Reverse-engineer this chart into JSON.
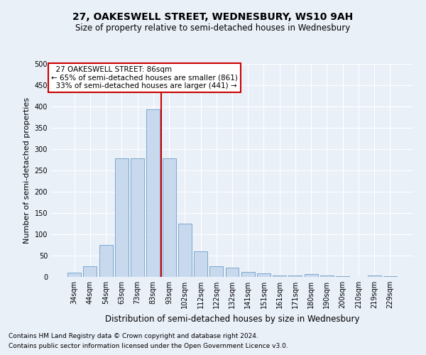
{
  "title": "27, OAKESWELL STREET, WEDNESBURY, WS10 9AH",
  "subtitle": "Size of property relative to semi-detached houses in Wednesbury",
  "xlabel": "Distribution of semi-detached houses by size in Wednesbury",
  "ylabel": "Number of semi-detached properties",
  "footnote1": "Contains HM Land Registry data © Crown copyright and database right 2024.",
  "footnote2": "Contains public sector information licensed under the Open Government Licence v3.0.",
  "property_label": "27 OAKESWELL STREET: 86sqm",
  "pct_smaller": 65,
  "count_smaller": 861,
  "pct_larger": 33,
  "count_larger": 441,
  "bar_color": "#c9d9ed",
  "bar_edge_color": "#6a9ec7",
  "vline_color": "#cc0000",
  "annotation_box_color": "#cc0000",
  "background_color": "#eaf0f8",
  "grid_color": "#ffffff",
  "categories": [
    "34sqm",
    "44sqm",
    "54sqm",
    "63sqm",
    "73sqm",
    "83sqm",
    "93sqm",
    "102sqm",
    "112sqm",
    "122sqm",
    "132sqm",
    "141sqm",
    "151sqm",
    "161sqm",
    "171sqm",
    "180sqm",
    "190sqm",
    "200sqm",
    "210sqm",
    "219sqm",
    "229sqm"
  ],
  "values": [
    10,
    25,
    75,
    278,
    278,
    393,
    278,
    125,
    60,
    25,
    22,
    12,
    9,
    4,
    3,
    6,
    3,
    2,
    0,
    3,
    2
  ],
  "ylim": [
    0,
    500
  ],
  "yticks": [
    0,
    50,
    100,
    150,
    200,
    250,
    300,
    350,
    400,
    450,
    500
  ],
  "vline_x_index": 5.5,
  "title_fontsize": 10,
  "subtitle_fontsize": 8.5,
  "ylabel_fontsize": 8,
  "xlabel_fontsize": 8.5,
  "tick_fontsize": 7,
  "annot_fontsize": 7.5,
  "footnote_fontsize": 6.5
}
